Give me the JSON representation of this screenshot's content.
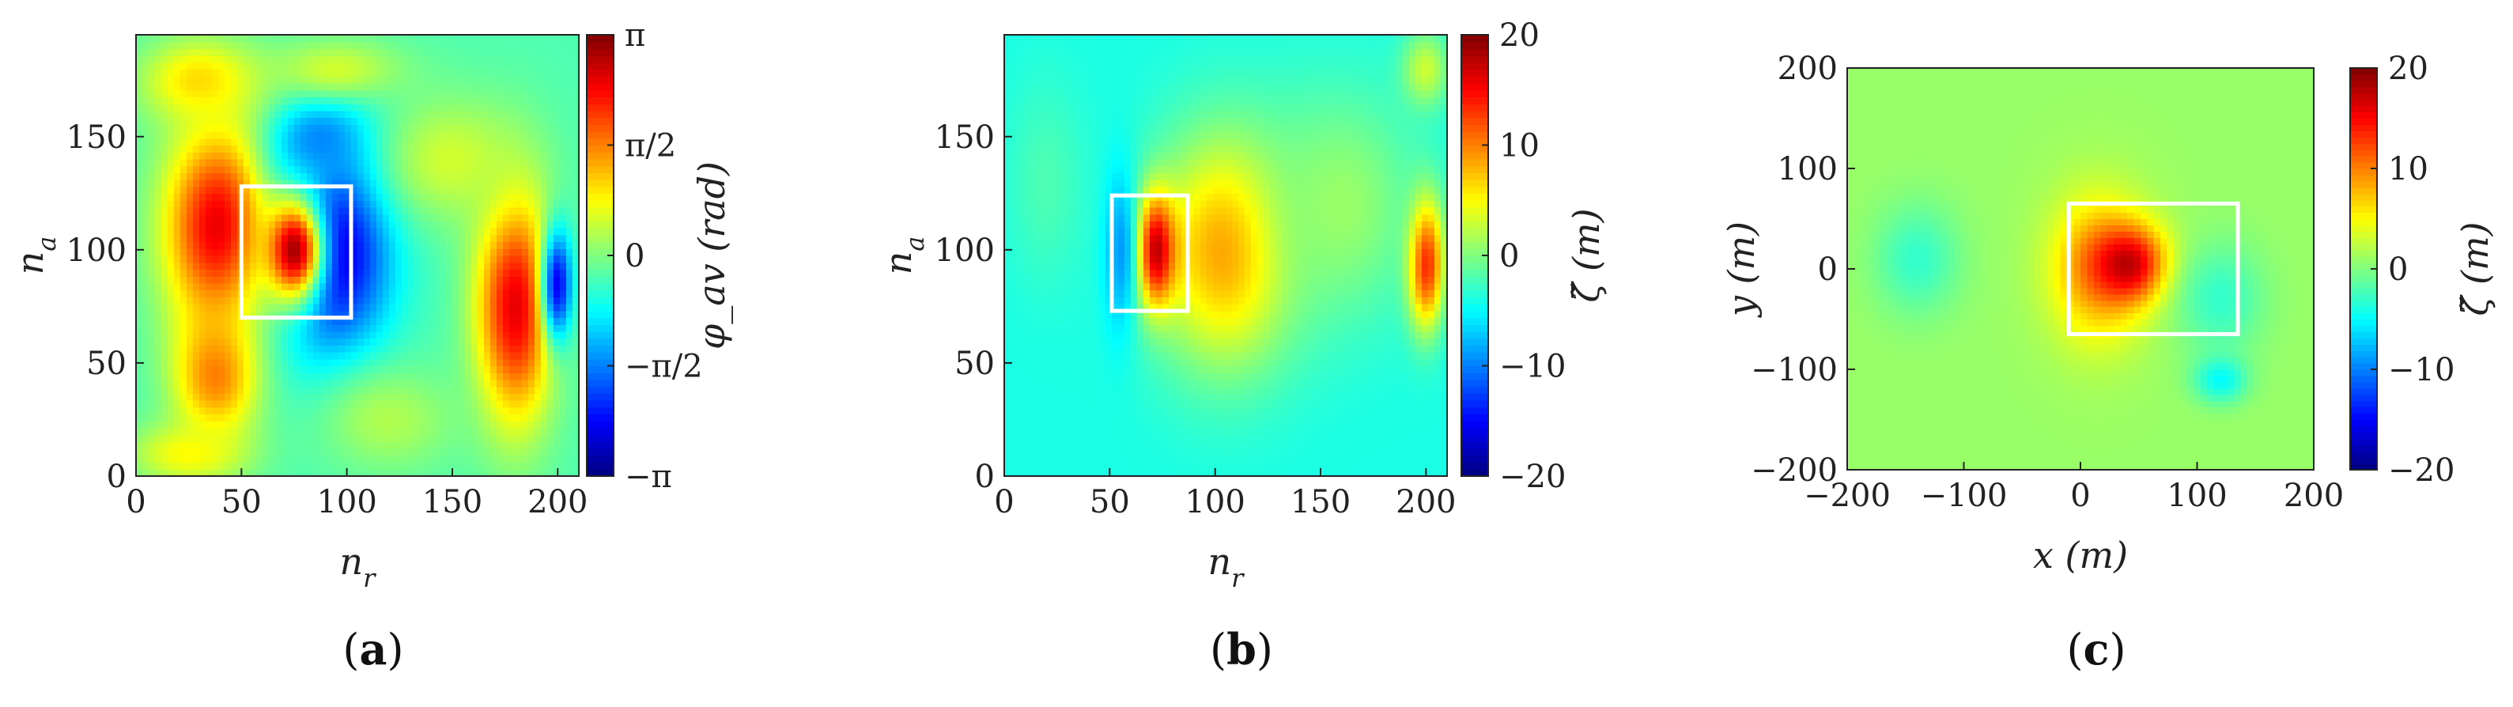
{
  "chart_data": [
    {
      "panel": "(a)",
      "panel_letter": "a",
      "type": "heatmap",
      "xlabel": "n_r",
      "ylabel": "n_a",
      "xlim": [
        0,
        210
      ],
      "ylim": [
        0,
        195
      ],
      "xticks": [
        0,
        50,
        100,
        150,
        200
      ],
      "yticks": [
        0,
        50,
        100,
        150
      ],
      "colorbar": {
        "label": "φ_av (rad)",
        "range": [
          -3.1416,
          3.1416
        ],
        "ticks": [
          -3.1416,
          -1.5708,
          0,
          1.5708,
          3.1416
        ],
        "tick_labels": [
          "−π",
          "−π/2",
          "0",
          "π/2",
          "π"
        ]
      },
      "colormap": "jet",
      "background_value": -0.3,
      "rect": {
        "x": [
          50,
          102
        ],
        "y": [
          70,
          128
        ],
        "color": "#ffffff"
      },
      "blobs": [
        {
          "x": 40,
          "y": 110,
          "rx": 28,
          "ry": 48,
          "v": 2.6
        },
        {
          "x": 38,
          "y": 45,
          "rx": 22,
          "ry": 32,
          "v": 1.6
        },
        {
          "x": 92,
          "y": 100,
          "rx": 30,
          "ry": 48,
          "v": -2.9
        },
        {
          "x": 88,
          "y": 148,
          "rx": 24,
          "ry": 22,
          "v": -1.6
        },
        {
          "x": 75,
          "y": 100,
          "rx": 16,
          "ry": 26,
          "v": 2.9
        },
        {
          "x": 180,
          "y": 75,
          "rx": 20,
          "ry": 55,
          "v": 2.5
        },
        {
          "x": 200,
          "y": 85,
          "rx": 8,
          "ry": 28,
          "v": -2.4
        },
        {
          "x": 120,
          "y": 25,
          "rx": 35,
          "ry": 25,
          "v": 0.3
        },
        {
          "x": 150,
          "y": 140,
          "rx": 35,
          "ry": 30,
          "v": 0.5
        },
        {
          "x": 95,
          "y": 180,
          "rx": 35,
          "ry": 15,
          "v": 0.5
        },
        {
          "x": 30,
          "y": 175,
          "rx": 30,
          "ry": 20,
          "v": 1.0
        },
        {
          "x": 25,
          "y": 10,
          "rx": 30,
          "ry": 15,
          "v": 0.8
        }
      ]
    },
    {
      "panel": "(b)",
      "panel_letter": "b",
      "type": "heatmap",
      "xlabel": "n_r",
      "ylabel": "n_a",
      "xlim": [
        0,
        210
      ],
      "ylim": [
        0,
        195
      ],
      "xticks": [
        0,
        50,
        100,
        150,
        200
      ],
      "yticks": [
        0,
        50,
        100,
        150
      ],
      "colorbar": {
        "label": "ζ̃ (m)",
        "range": [
          -20,
          20
        ],
        "ticks": [
          -20,
          -10,
          0,
          10,
          20
        ],
        "tick_labels": [
          "−20",
          "−10",
          "0",
          "10",
          "20"
        ]
      },
      "colormap": "jet",
      "background_value": -4,
      "rect": {
        "x": [
          51,
          87
        ],
        "y": [
          73,
          124
        ],
        "color": "#ffffff"
      },
      "blobs": [
        {
          "x": 105,
          "y": 100,
          "rx": 36,
          "ry": 55,
          "v": 9
        },
        {
          "x": 72,
          "y": 100,
          "rx": 10,
          "ry": 26,
          "v": 18
        },
        {
          "x": 55,
          "y": 100,
          "rx": 9,
          "ry": 40,
          "v": -9
        },
        {
          "x": 200,
          "y": 95,
          "rx": 9,
          "ry": 30,
          "v": 17
        },
        {
          "x": 160,
          "y": 120,
          "rx": 40,
          "ry": 55,
          "v": 1
        },
        {
          "x": 200,
          "y": 180,
          "rx": 12,
          "ry": 18,
          "v": 3
        },
        {
          "x": 20,
          "y": 130,
          "rx": 20,
          "ry": 50,
          "v": -2
        }
      ]
    },
    {
      "panel": "(c)",
      "panel_letter": "c",
      "type": "heatmap",
      "xlabel": "x (m)",
      "ylabel": "y (m)",
      "xlim": [
        -200,
        200
      ],
      "ylim": [
        -200,
        200
      ],
      "xticks": [
        -200,
        -100,
        0,
        100,
        200
      ],
      "yticks": [
        -200,
        -100,
        0,
        100,
        200
      ],
      "colorbar": {
        "label": "ζ̃ (m)",
        "range": [
          -20,
          20
        ],
        "ticks": [
          -20,
          -10,
          0,
          10,
          20
        ],
        "tick_labels": [
          "−20",
          "−10",
          "0",
          "10",
          "20"
        ]
      },
      "colormap": "jet",
      "background_value": 1,
      "rect": {
        "x": [
          -10,
          135
        ],
        "y": [
          -65,
          65
        ],
        "color": "#ffffff"
      },
      "blobs": [
        {
          "x": 15,
          "y": 0,
          "rx": 45,
          "ry": 80,
          "v": 9
        },
        {
          "x": 40,
          "y": 5,
          "rx": 35,
          "ry": 40,
          "v": 18
        },
        {
          "x": 120,
          "y": -30,
          "rx": 40,
          "ry": 60,
          "v": -3
        },
        {
          "x": -140,
          "y": 10,
          "rx": 40,
          "ry": 60,
          "v": -3
        },
        {
          "x": 120,
          "y": -110,
          "rx": 25,
          "ry": 25,
          "v": -5
        }
      ]
    }
  ]
}
